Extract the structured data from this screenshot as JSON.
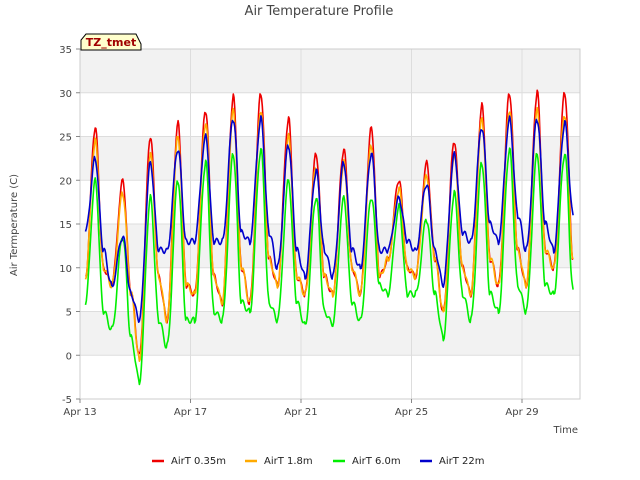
{
  "chart_data": {
    "type": "line",
    "title": "Air Temperature Profile",
    "xlabel": "Time",
    "ylabel": "Air Termperature (C)",
    "ylim": [
      -5,
      35
    ],
    "xlim": [
      0,
      18.1
    ],
    "yticks": [
      -5,
      0,
      5,
      10,
      15,
      20,
      25,
      30,
      35
    ],
    "xticks": [
      {
        "x": 0,
        "label": "Apr 13"
      },
      {
        "x": 4,
        "label": "Apr 17"
      },
      {
        "x": 8,
        "label": "Apr 21"
      },
      {
        "x": 12,
        "label": "Apr 25"
      },
      {
        "x": 16,
        "label": "Apr 29"
      }
    ],
    "x_unit": "days since Apr 13",
    "grid": true,
    "legend_placement": "bottom",
    "tag": "TZ_tmet",
    "series": [
      {
        "name": "AirT 0.35m",
        "color": "#ee0000",
        "x": [
          0.2,
          0.55,
          0.85,
          1.15,
          1.55,
          1.85,
          2.15,
          2.55,
          2.85,
          3.15,
          3.55,
          3.85,
          4.15,
          4.55,
          4.85,
          5.15,
          5.55,
          5.85,
          6.15,
          6.55,
          6.85,
          7.15,
          7.55,
          7.85,
          8.15,
          8.55,
          8.85,
          9.15,
          9.55,
          9.85,
          10.15,
          10.55,
          10.85,
          11.15,
          11.55,
          11.85,
          12.15,
          12.55,
          12.85,
          13.15,
          13.55,
          13.85,
          14.15,
          14.55,
          14.85,
          15.15,
          15.55,
          15.85,
          16.15,
          16.55,
          16.85,
          17.15,
          17.55,
          17.85
        ],
        "y": [
          9,
          26,
          10,
          8,
          20,
          7,
          0,
          25,
          9,
          4,
          26.5,
          8,
          7,
          28,
          9,
          6,
          29.5,
          10,
          6,
          30,
          11,
          8,
          27,
          9,
          7,
          23,
          9,
          7,
          23.5,
          10,
          7,
          26,
          9,
          11,
          20,
          10,
          9,
          22,
          11,
          5,
          24.5,
          10,
          7,
          28.5,
          11,
          8,
          30,
          12,
          8,
          30,
          12,
          10,
          30,
          11
        ]
      },
      {
        "name": "AirT 1.8m",
        "color": "#ffaa00",
        "x": [
          0.2,
          0.55,
          0.85,
          1.15,
          1.55,
          1.85,
          2.15,
          2.55,
          2.85,
          3.15,
          3.55,
          3.85,
          4.15,
          4.55,
          4.85,
          5.15,
          5.55,
          5.85,
          6.15,
          6.55,
          6.85,
          7.15,
          7.55,
          7.85,
          8.15,
          8.55,
          8.85,
          9.15,
          9.55,
          9.85,
          10.15,
          10.55,
          10.85,
          11.15,
          11.55,
          11.85,
          12.15,
          12.55,
          12.85,
          13.15,
          13.55,
          13.85,
          14.15,
          14.55,
          14.85,
          15.15,
          15.55,
          15.85,
          16.15,
          16.55,
          16.85,
          17.15,
          17.55,
          17.85
        ],
        "y": [
          9,
          24.5,
          10,
          8,
          18.5,
          7,
          -0.5,
          23,
          9,
          4,
          25,
          8,
          7,
          26.5,
          9,
          6,
          28,
          10,
          6,
          28,
          11,
          8,
          25,
          9,
          7,
          21.5,
          9,
          7,
          22,
          10,
          7,
          24,
          9,
          11,
          19,
          10,
          9,
          20.5,
          11,
          5,
          23,
          10,
          7,
          27,
          11,
          8,
          28,
          12,
          8,
          28,
          12,
          10,
          27.5,
          11
        ]
      },
      {
        "name": "AirT 6.0m",
        "color": "#00ee00",
        "x": [
          0.2,
          0.55,
          0.85,
          1.15,
          1.55,
          1.85,
          2.15,
          2.55,
          2.85,
          3.15,
          3.55,
          3.85,
          4.15,
          4.55,
          4.85,
          5.15,
          5.55,
          5.85,
          6.15,
          6.55,
          6.85,
          7.15,
          7.55,
          7.85,
          8.15,
          8.55,
          8.85,
          9.15,
          9.55,
          9.85,
          10.15,
          10.55,
          10.85,
          11.15,
          11.55,
          11.85,
          12.15,
          12.55,
          12.85,
          13.15,
          13.55,
          13.85,
          14.15,
          14.55,
          14.85,
          15.15,
          15.55,
          15.85,
          16.15,
          16.55,
          16.85,
          17.15,
          17.55,
          17.85
        ],
        "y": [
          6,
          20,
          5,
          3,
          13.5,
          2,
          -3,
          18,
          4,
          1,
          20,
          4,
          4,
          22,
          5,
          4,
          23,
          6,
          5,
          23.5,
          6,
          4,
          20,
          6,
          3.5,
          18,
          5,
          3.5,
          18,
          6,
          4,
          18,
          8,
          7,
          17,
          7,
          7,
          15.5,
          7,
          2,
          18.5,
          7,
          4,
          22,
          7,
          5,
          23.5,
          8,
          5,
          23,
          8,
          7,
          23,
          7.5
        ]
      },
      {
        "name": "AirT 22m",
        "color": "#0000cc",
        "x": [
          0.2,
          0.55,
          0.85,
          1.15,
          1.55,
          1.85,
          2.15,
          2.55,
          2.85,
          3.15,
          3.55,
          3.85,
          4.15,
          4.55,
          4.85,
          5.15,
          5.55,
          5.85,
          6.15,
          6.55,
          6.85,
          7.15,
          7.55,
          7.85,
          8.15,
          8.55,
          8.85,
          9.15,
          9.55,
          9.85,
          10.15,
          10.55,
          10.85,
          11.15,
          11.55,
          11.85,
          12.15,
          12.55,
          12.85,
          13.15,
          13.55,
          13.85,
          14.15,
          14.55,
          14.85,
          15.15,
          15.55,
          15.85,
          16.15,
          16.55,
          16.85,
          17.15,
          17.55,
          17.85
        ],
        "y": [
          14,
          22.5,
          12,
          8,
          13.5,
          7,
          4,
          22,
          12,
          12,
          23.5,
          13,
          13,
          25,
          13,
          13,
          27,
          14,
          13,
          27,
          14,
          10,
          24,
          12,
          9,
          21,
          12,
          9,
          22,
          12,
          10,
          23,
          12,
          12,
          18,
          13,
          12,
          19.5,
          12,
          8,
          23,
          14,
          13,
          26,
          15,
          13,
          27,
          16,
          12,
          27,
          15,
          12,
          26.5,
          16
        ]
      }
    ]
  }
}
